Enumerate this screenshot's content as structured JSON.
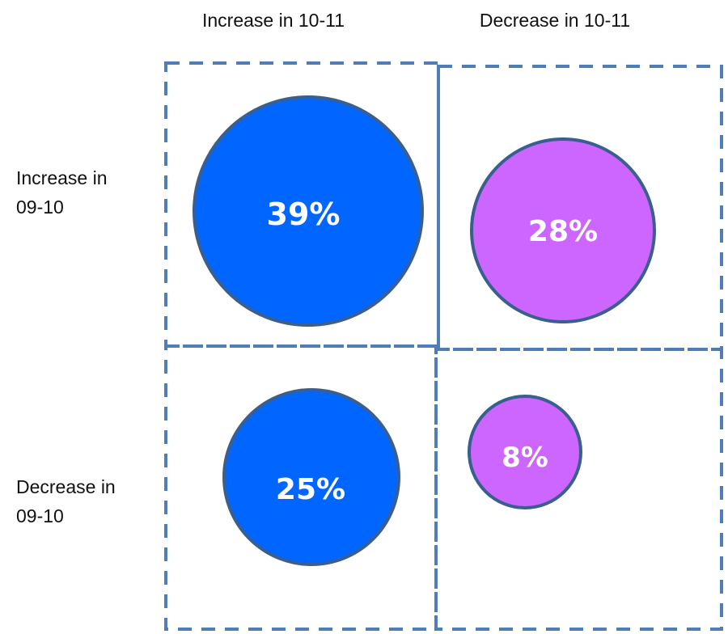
{
  "column_headers": [
    "Increase in 10-11",
    "Decrease in 10-11"
  ],
  "row_headers": [
    [
      "Increase in",
      "09-10"
    ],
    [
      "Decrease in",
      "09-10"
    ]
  ],
  "colors": {
    "blue": "#0066ff",
    "purple": "#cc66ff",
    "outline": "#3a5f8f",
    "dash": "#4f7db5",
    "label_text": "#ffffff",
    "header_text": "#111111"
  },
  "bubbles": [
    {
      "row": 0,
      "col": 0,
      "label": "39%",
      "value": 39,
      "color": "blue"
    },
    {
      "row": 0,
      "col": 1,
      "label": "28%",
      "value": 28,
      "color": "purple"
    },
    {
      "row": 1,
      "col": 0,
      "label": "25%",
      "value": 25,
      "color": "blue"
    },
    {
      "row": 1,
      "col": 1,
      "label": "8%",
      "value": 8,
      "color": "purple"
    }
  ]
}
